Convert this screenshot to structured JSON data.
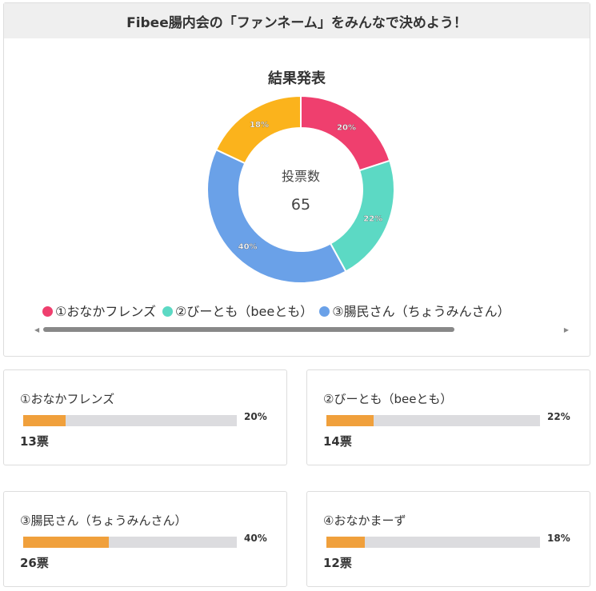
{
  "title": "Fibee腸内会の「ファンネーム」をみんなで決めよう！",
  "chart_data": {
    "type": "pie",
    "title": "結果発表",
    "center_label": "投票数",
    "center_value": "65",
    "categories": [
      "①おなかフレンズ",
      "②びーとも（beeとも）",
      "③腸民さん（ちょうみんさん）",
      "④おなかまーず"
    ],
    "values": [
      20,
      22,
      40,
      18
    ],
    "labels": [
      "20%",
      "22%",
      "40%",
      "18%"
    ],
    "colors": [
      "#ef3f6e",
      "#5cd9c4",
      "#6aa1e8",
      "#fbb31c"
    ],
    "legend_placement": "bottom"
  },
  "cards": [
    {
      "name": "①おなかフレンズ",
      "pct": "20%",
      "percent": 20,
      "votes": "13票"
    },
    {
      "name": "②びーとも（beeとも）",
      "pct": "22%",
      "percent": 22,
      "votes": "14票"
    },
    {
      "name": "③腸民さん（ちょうみんさん）",
      "pct": "40%",
      "percent": 40,
      "votes": "26票"
    },
    {
      "name": "④おなかまーず",
      "pct": "18%",
      "percent": 18,
      "votes": "12票"
    }
  ],
  "bar_color": "#f0a03c"
}
